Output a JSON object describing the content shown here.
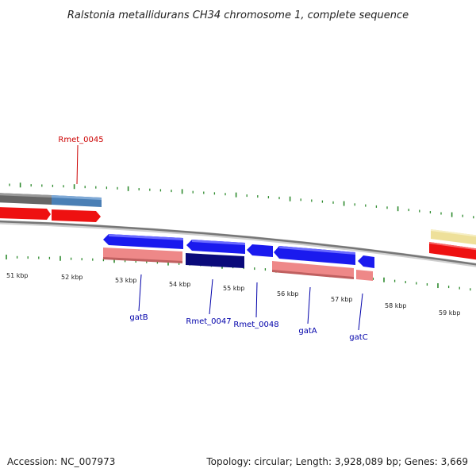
{
  "title": "Ralstonia metallidurans CH34 chromosome 1, complete sequence",
  "ruler": {
    "labels": [
      "51 kbp",
      "52 kbp",
      "53 kbp",
      "54 kbp",
      "55 kbp",
      "56 kbp",
      "57 kbp",
      "58 kbp",
      "59 kbp"
    ]
  },
  "genes": [
    {
      "name": "Rmet_0045",
      "color": "#cc0000"
    },
    {
      "name": "gatB",
      "color": "#0000aa"
    },
    {
      "name": "Rmet_0047",
      "color": "#0000aa"
    },
    {
      "name": "Rmet_0048",
      "color": "#0000aa"
    },
    {
      "name": "gatA",
      "color": "#0000aa"
    },
    {
      "name": "gatC",
      "color": "#0000aa"
    }
  ],
  "colors": {
    "backbone": "#777777",
    "ticks": "#2e8b2e",
    "forward_cds": "#ee1111",
    "reverse_cds": "#1a1aee",
    "rna": "#ee8888",
    "dark_cds": "#0a0a7a",
    "gray_feature": "#666666",
    "steel_feature": "#4a7fb5",
    "yellow_feature": "#eee09a"
  },
  "footer": {
    "accession": "Accession: NC_007973",
    "topology": "Topology: circular; Length: 3,928,089 bp; Genes: 3,669"
  }
}
